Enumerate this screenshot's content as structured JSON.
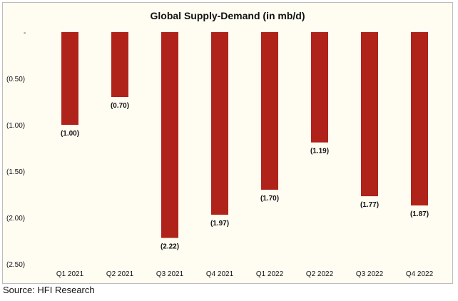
{
  "colors": {
    "bar": "#b0231a",
    "background": "#fffdf2"
  },
  "source": "Source: HFI Research",
  "chart_data": {
    "type": "bar",
    "title": "Global Supply-Demand (in mb/d)",
    "xlabel": "",
    "ylabel": "",
    "categories": [
      "Q1 2021",
      "Q2 2021",
      "Q3 2021",
      "Q4 2021",
      "Q1 2022",
      "Q2 2022",
      "Q3 2022",
      "Q4 2022"
    ],
    "values": [
      -1.0,
      -0.7,
      -2.22,
      -1.97,
      -1.7,
      -1.19,
      -1.77,
      -1.87
    ],
    "data_labels": [
      "(1.00)",
      "(0.70)",
      "(2.22)",
      "(1.97)",
      "(1.70)",
      "(1.19)",
      "(1.77)",
      "(1.87)"
    ],
    "y_ticks": [
      0,
      -0.5,
      -1.0,
      -1.5,
      -2.0,
      -2.5
    ],
    "y_tick_labels": [
      "-",
      "(0.50)",
      "(1.00)",
      "(1.50)",
      "(2.00)",
      "(2.50)"
    ],
    "ylim": [
      -2.5,
      0
    ],
    "grid": false,
    "legend": "none"
  }
}
